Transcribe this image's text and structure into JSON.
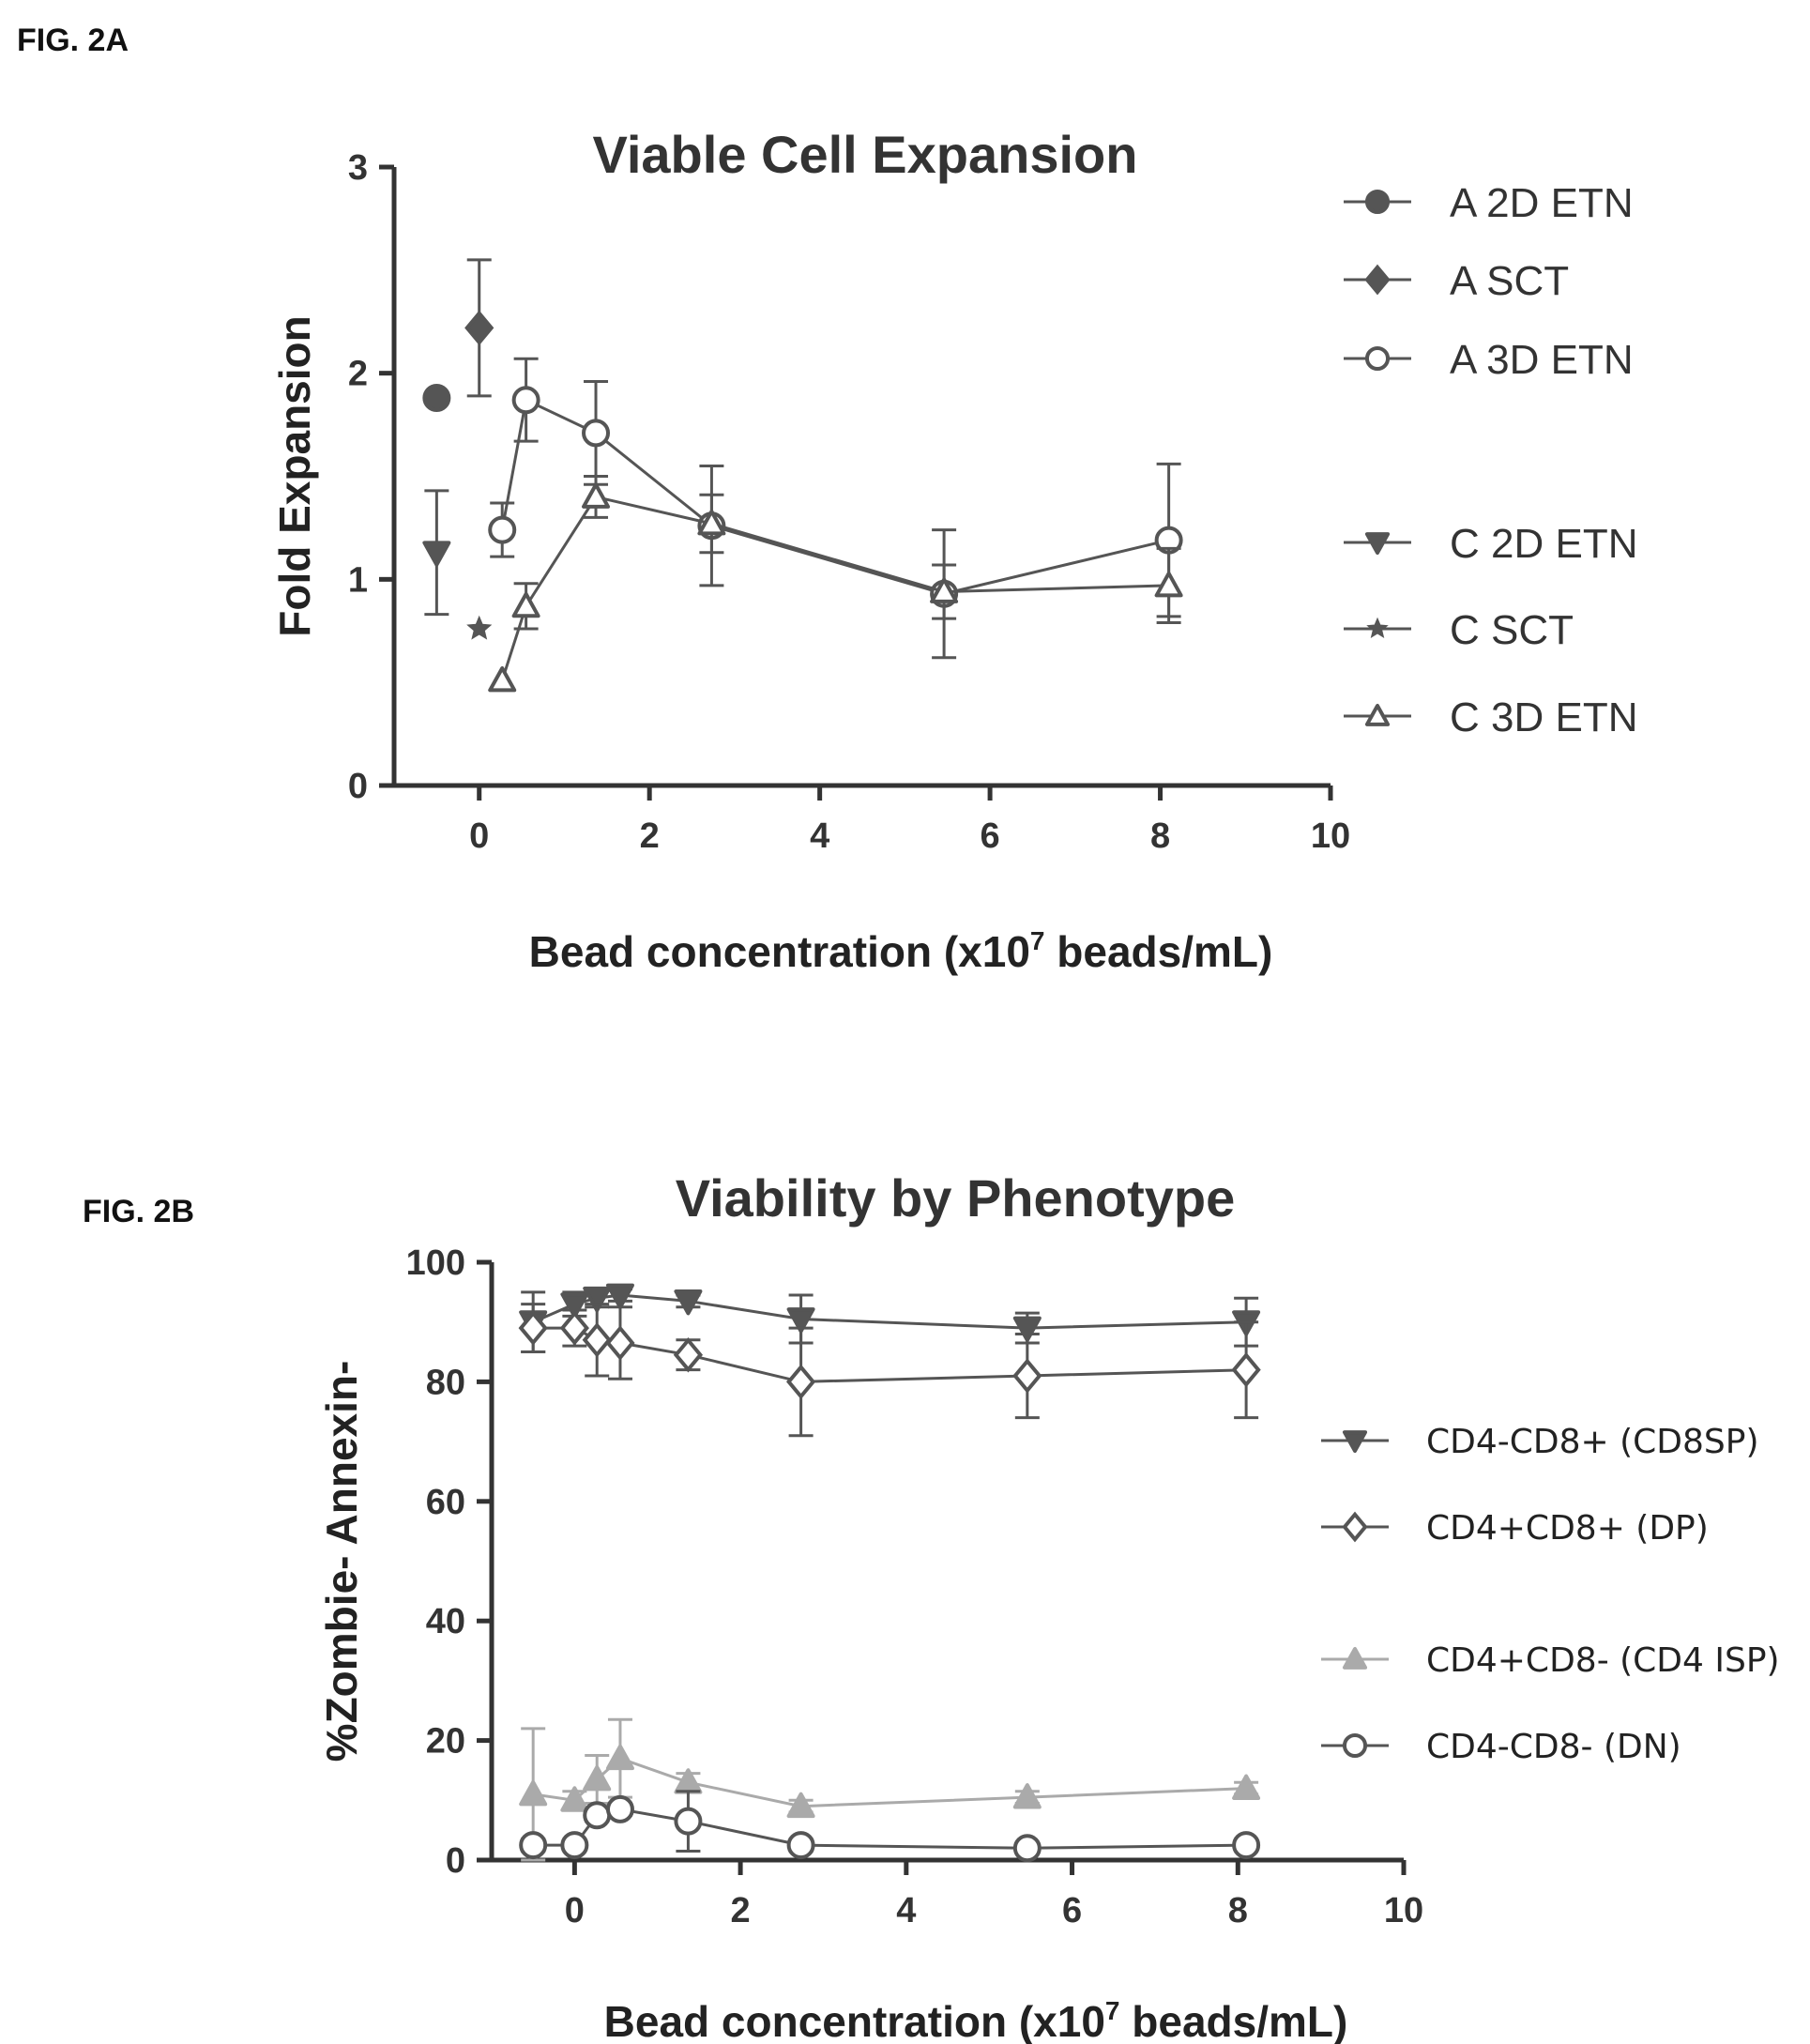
{
  "figure_a": {
    "label": "FIG. 2A"
  },
  "figure_b": {
    "label": "FIG. 2B"
  },
  "chart_data": [
    {
      "type": "scatter",
      "title": "Viable Cell Expansion",
      "xlabel": "Bead concentration (x10",
      "xlabel_sup": "7",
      "xlabel_tail": " beads/mL)",
      "ylabel": "Fold Expansion",
      "xlim": [
        -1,
        10
      ],
      "ylim": [
        0,
        3
      ],
      "xticks": [
        0,
        2,
        4,
        6,
        8,
        10
      ],
      "yticks": [
        0,
        1,
        2,
        3
      ],
      "line_color": "#555555",
      "series": [
        {
          "name": "A 2D ETN",
          "marker": "circle-filled",
          "connected": false,
          "points": [
            {
              "x": -0.5,
              "y": 1.88
            }
          ]
        },
        {
          "name": "A SCT",
          "marker": "diamond-filled",
          "connected": false,
          "points": [
            {
              "x": 0.0,
              "y": 2.22,
              "err": 0.33
            }
          ]
        },
        {
          "name": "A 3D ETN",
          "marker": "circle-open",
          "connected": true,
          "points": [
            {
              "x": 0.27,
              "y": 1.24,
              "err": 0.13
            },
            {
              "x": 0.55,
              "y": 1.87,
              "err": 0.2
            },
            {
              "x": 1.37,
              "y": 1.71,
              "err": 0.25
            },
            {
              "x": 2.73,
              "y": 1.26,
              "err": 0.29
            },
            {
              "x": 5.46,
              "y": 0.93,
              "err": 0.31
            },
            {
              "x": 8.1,
              "y": 1.19,
              "err": 0.37
            }
          ]
        },
        {
          "name": "C 2D ETN",
          "marker": "triangle-down-filled",
          "connected": false,
          "points": [
            {
              "x": -0.5,
              "y": 1.13,
              "err": 0.3
            }
          ]
        },
        {
          "name": "C SCT",
          "marker": "star",
          "connected": false,
          "points": [
            {
              "x": 0.0,
              "y": 0.76
            }
          ]
        },
        {
          "name": "C 3D ETN",
          "marker": "triangle-up-open",
          "connected": true,
          "points": [
            {
              "x": 0.27,
              "y": 0.51
            },
            {
              "x": 0.55,
              "y": 0.87,
              "err": 0.11
            },
            {
              "x": 1.37,
              "y": 1.4,
              "err": 0.1
            },
            {
              "x": 2.73,
              "y": 1.27,
              "err": 0.14
            },
            {
              "x": 5.46,
              "y": 0.94,
              "err": 0.13
            },
            {
              "x": 8.1,
              "y": 0.97,
              "err": 0.18
            }
          ]
        }
      ],
      "legend_position": "right"
    },
    {
      "type": "line",
      "title": "Viability by Phenotype",
      "xlabel": "Bead concentration (x10",
      "xlabel_sup": "7",
      "xlabel_tail": " beads/mL)",
      "ylabel": "%Zombie- Annexin-",
      "xlim": [
        -1,
        10
      ],
      "ylim": [
        0,
        100
      ],
      "xticks": [
        0,
        2,
        4,
        6,
        8,
        10
      ],
      "yticks": [
        0,
        20,
        40,
        60,
        80,
        100
      ],
      "line_colors": {
        "dark": "#555555",
        "light": "#aaaaaa"
      },
      "series": [
        {
          "name": "CD4-CD8+ (CD8SP)",
          "marker": "triangle-down-filled",
          "tone": "dark",
          "points": [
            {
              "x": -0.5,
              "y": 90,
              "err": 5
            },
            {
              "x": 0.0,
              "y": 93,
              "err": 2
            },
            {
              "x": 0.27,
              "y": 94,
              "err": 1.5
            },
            {
              "x": 0.55,
              "y": 94.5,
              "err": 1
            },
            {
              "x": 1.37,
              "y": 93.5,
              "err": 1
            },
            {
              "x": 2.73,
              "y": 90.5,
              "err": 4
            },
            {
              "x": 5.46,
              "y": 89,
              "err": 2.5
            },
            {
              "x": 8.1,
              "y": 90,
              "err": 4
            }
          ]
        },
        {
          "name": "CD4+CD8+ (DP)",
          "marker": "diamond-open",
          "tone": "dark",
          "points": [
            {
              "x": -0.5,
              "y": 89,
              "err": 4
            },
            {
              "x": 0.0,
              "y": 89,
              "err": 3
            },
            {
              "x": 0.27,
              "y": 87,
              "err": 6
            },
            {
              "x": 0.55,
              "y": 86.5,
              "err": 6
            },
            {
              "x": 1.37,
              "y": 84.5,
              "err": 2.5
            },
            {
              "x": 2.73,
              "y": 80,
              "err": 9
            },
            {
              "x": 5.46,
              "y": 81,
              "err": 7
            },
            {
              "x": 8.1,
              "y": 82,
              "err": 8
            }
          ]
        },
        {
          "name": "CD4+CD8- (CD4 ISP)",
          "marker": "triangle-up-filled",
          "tone": "light",
          "points": [
            {
              "x": -0.5,
              "y": 11,
              "err": 11
            },
            {
              "x": 0.0,
              "y": 10,
              "err": 1.5
            },
            {
              "x": 0.27,
              "y": 13.5,
              "err": 4
            },
            {
              "x": 0.55,
              "y": 17,
              "err": 6.5
            },
            {
              "x": 1.37,
              "y": 13,
              "err": 1.5
            },
            {
              "x": 2.73,
              "y": 9,
              "err": 1
            },
            {
              "x": 5.46,
              "y": 10.5,
              "err": 1
            },
            {
              "x": 8.1,
              "y": 12,
              "err": 1
            }
          ]
        },
        {
          "name": "CD4-CD8- (DN)",
          "marker": "circle-open",
          "tone": "dark",
          "points": [
            {
              "x": -0.5,
              "y": 2.5,
              "err": 1
            },
            {
              "x": 0.0,
              "y": 2.5,
              "err": 0.5
            },
            {
              "x": 0.27,
              "y": 7.5,
              "err": 1
            },
            {
              "x": 0.55,
              "y": 8.5,
              "err": 1
            },
            {
              "x": 1.37,
              "y": 6.5,
              "err": 5
            },
            {
              "x": 2.73,
              "y": 2.5,
              "err": 1
            },
            {
              "x": 5.46,
              "y": 2,
              "err": 0.5
            },
            {
              "x": 8.1,
              "y": 2.5,
              "err": 0.5
            }
          ]
        }
      ],
      "legend_position": "right"
    }
  ]
}
